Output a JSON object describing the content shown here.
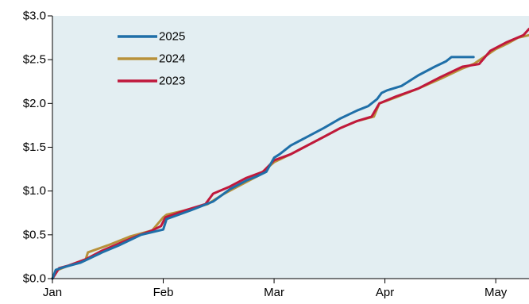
{
  "chart_data": {
    "type": "line",
    "title": "",
    "xlabel": "",
    "ylabel": "",
    "x_ticks": [
      "Jan",
      "Feb",
      "Mar",
      "Apr",
      "May"
    ],
    "xlim": [
      0,
      4.3
    ],
    "y_ticks": [
      "$0.0",
      "$0.5",
      "$1.0",
      "$1.5",
      "$2.0",
      "$2.5",
      "$3.0"
    ],
    "ylim": [
      0,
      3.0
    ],
    "legend_position": "top-left",
    "plot_background": "#e3eef2",
    "series": [
      {
        "name": "2025",
        "color": "#1f6fa8",
        "x": [
          0.0,
          0.03,
          0.1,
          0.25,
          0.45,
          0.6,
          0.8,
          1.0,
          1.03,
          1.25,
          1.45,
          1.6,
          1.75,
          1.85,
          1.93,
          2.0,
          2.05,
          2.15,
          2.3,
          2.45,
          2.6,
          2.75,
          2.85,
          2.93,
          2.97,
          3.02,
          3.15,
          3.3,
          3.45,
          3.55,
          3.6,
          3.8
        ],
        "values": [
          0.0,
          0.1,
          0.13,
          0.18,
          0.3,
          0.38,
          0.5,
          0.56,
          0.68,
          0.78,
          0.88,
          1.02,
          1.12,
          1.17,
          1.22,
          1.38,
          1.42,
          1.52,
          1.62,
          1.72,
          1.83,
          1.92,
          1.97,
          2.05,
          2.12,
          2.15,
          2.2,
          2.32,
          2.42,
          2.48,
          2.53,
          2.53
        ]
      },
      {
        "name": "2024",
        "color": "#b8913a",
        "x": [
          0.0,
          0.05,
          0.15,
          0.3,
          0.32,
          0.5,
          0.7,
          0.9,
          1.0,
          1.03,
          1.2,
          1.4,
          1.55,
          1.7,
          1.85,
          2.0,
          2.15,
          2.3,
          2.45,
          2.6,
          2.75,
          2.9,
          2.95,
          3.1,
          3.3,
          3.5,
          3.7,
          3.8,
          4.0,
          4.1,
          4.2,
          4.3
        ],
        "values": [
          0.0,
          0.1,
          0.15,
          0.22,
          0.3,
          0.38,
          0.48,
          0.55,
          0.7,
          0.73,
          0.78,
          0.85,
          0.97,
          1.07,
          1.17,
          1.33,
          1.42,
          1.52,
          1.62,
          1.72,
          1.8,
          1.85,
          2.0,
          2.07,
          2.17,
          2.28,
          2.4,
          2.45,
          2.62,
          2.68,
          2.75,
          2.78
        ]
      },
      {
        "name": "2023",
        "color": "#c0183c",
        "x": [
          0.0,
          0.06,
          0.15,
          0.3,
          0.45,
          0.6,
          0.75,
          0.9,
          0.98,
          1.02,
          1.2,
          1.38,
          1.45,
          1.6,
          1.75,
          1.9,
          2.0,
          2.15,
          2.3,
          2.45,
          2.6,
          2.75,
          2.88,
          2.95,
          3.1,
          3.3,
          3.5,
          3.7,
          3.85,
          3.95,
          4.1,
          4.25,
          4.3
        ],
        "values": [
          0.0,
          0.12,
          0.15,
          0.22,
          0.32,
          0.4,
          0.48,
          0.55,
          0.6,
          0.7,
          0.78,
          0.85,
          0.97,
          1.05,
          1.15,
          1.22,
          1.35,
          1.42,
          1.52,
          1.62,
          1.72,
          1.8,
          1.85,
          2.0,
          2.08,
          2.17,
          2.3,
          2.42,
          2.45,
          2.6,
          2.7,
          2.78,
          2.85
        ]
      }
    ]
  }
}
